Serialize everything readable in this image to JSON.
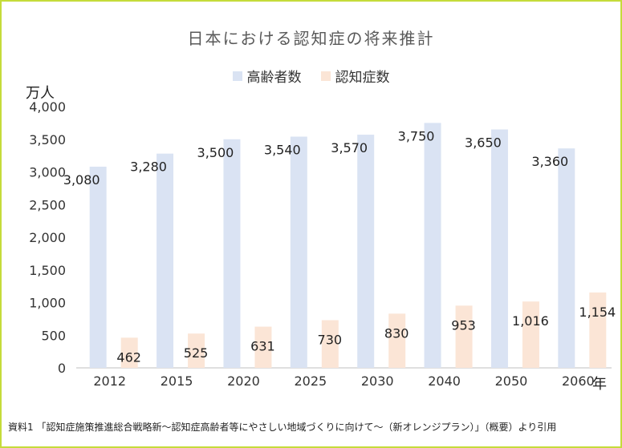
{
  "chart_data": {
    "type": "bar",
    "title": "日本における認知症の将来推計",
    "ylabel": "万人",
    "x_suffix": "年",
    "categories": [
      "2012",
      "2015",
      "2020",
      "2025",
      "2030",
      "2040",
      "2050",
      "2060"
    ],
    "series": [
      {
        "name": "高齢者数",
        "color": "#dae3f3",
        "values": [
          3080,
          3280,
          3500,
          3540,
          3570,
          3750,
          3650,
          3360
        ]
      },
      {
        "name": "認知症数",
        "color": "#fbe5d6",
        "values": [
          462,
          525,
          631,
          730,
          830,
          953,
          1016,
          1154
        ]
      }
    ],
    "ylim": [
      0,
      4000
    ],
    "yticks": [
      "0",
      "500",
      "1,000",
      "1,500",
      "2,000",
      "2,500",
      "3,000",
      "3,500",
      "4,000"
    ],
    "data_labels": [
      [
        "3,080",
        "3,280",
        "3,500",
        "3,540",
        "3,570",
        "3,750",
        "3,650",
        "3,360"
      ],
      [
        "462",
        "525",
        "631",
        "730",
        "830",
        "953",
        "1,016",
        "1,154"
      ]
    ],
    "legend": "top-center",
    "grid": false
  },
  "source": "資料1 「認知症施策推進総合戦略新～認知症高齢者等にやさしい地域づくりに向けて～（新オレンジプラン）」（概要）より引用"
}
